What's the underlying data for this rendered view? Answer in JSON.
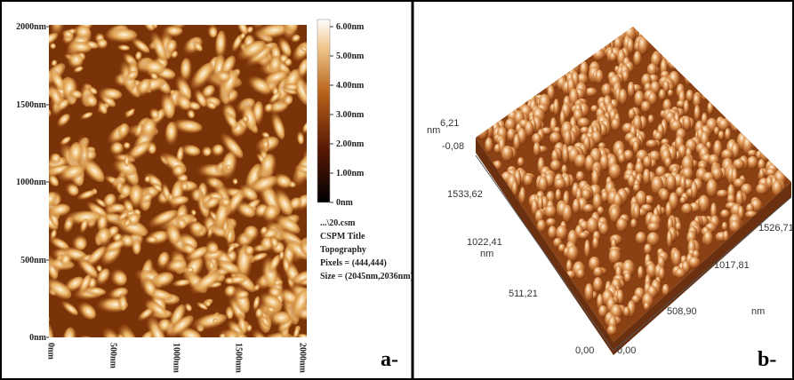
{
  "panel_a": {
    "y_axis_labels": [
      "2000nm",
      "1500nm",
      "1000nm",
      "500nm",
      "0nm"
    ],
    "x_axis_labels": [
      "0nm",
      "500nm",
      "1000nm",
      "1500nm",
      "2000nm"
    ],
    "colorbar_labels": [
      "6.00nm",
      "5.00nm",
      "4.00nm",
      "3.00nm",
      "2.00nm",
      "1.00nm",
      "0nm"
    ],
    "info": [
      "...\\20.csm",
      "CSPM Title",
      "Topography",
      "Pixels = (444,444)",
      "Size = (2045nm,2036nm)"
    ],
    "label": "a-"
  },
  "panel_b": {
    "z_unit": "nm",
    "z_max": "6,21",
    "z_min": "-0,08",
    "y_axis_labels": [
      "1533,62",
      "1022,41",
      "511,21",
      "0,00"
    ],
    "y_unit": "nm",
    "x_axis_labels": [
      "0,00",
      "508,90",
      "1017,81",
      "1526,71"
    ],
    "x_unit": "nm",
    "label": "b-"
  }
}
